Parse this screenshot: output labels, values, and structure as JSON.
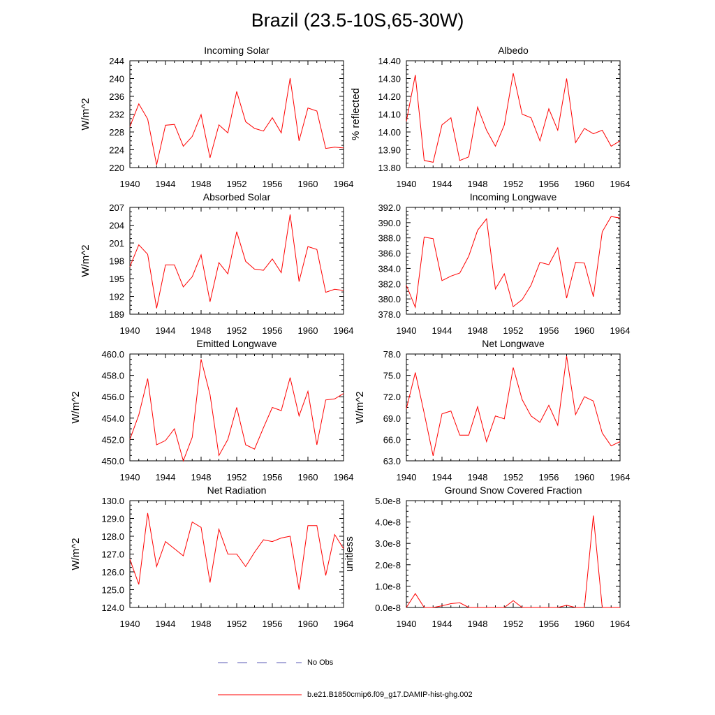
{
  "title": "Brazil (23.5-10S,65-30W)",
  "colors": {
    "model": "#ff0000",
    "obs": "#5a5ab4",
    "axis": "#000000"
  },
  "legend": [
    {
      "label": "No Obs",
      "color": "#5a5ab4",
      "style": "dashed"
    },
    {
      "label": "b.e21.B1850cmip6.f09_g17.DAMIP-hist-ghg.002",
      "color": "#ff0000",
      "style": "solid"
    }
  ],
  "chart_data": [
    {
      "type": "line",
      "title": "Incoming Solar",
      "ylabel": "W/m^2",
      "xlim": [
        1940,
        1964
      ],
      "ylim": [
        220,
        244
      ],
      "yticks": [
        "220",
        "224",
        "228",
        "232",
        "236",
        "240",
        "244"
      ],
      "xticks": [
        "1940",
        "1944",
        "1948",
        "1952",
        "1956",
        "1960",
        "1964"
      ],
      "x": [
        1940,
        1941,
        1942,
        1943,
        1944,
        1945,
        1946,
        1947,
        1948,
        1949,
        1950,
        1951,
        1952,
        1953,
        1954,
        1955,
        1956,
        1957,
        1958,
        1959,
        1960,
        1961,
        1962,
        1963,
        1964
      ],
      "series": [
        {
          "values": [
            229.2,
            234.3,
            230.9,
            220.6,
            229.5,
            229.7,
            224.8,
            227.0,
            231.9,
            222.2,
            229.6,
            227.8,
            237.1,
            230.3,
            228.8,
            228.2,
            231.2,
            227.8,
            240.1,
            226.0,
            233.4,
            232.7,
            224.3,
            224.6,
            224.4
          ]
        }
      ]
    },
    {
      "type": "line",
      "title": "Albedo",
      "ylabel": "% reflected",
      "xlim": [
        1940,
        1964
      ],
      "ylim": [
        13.8,
        14.4
      ],
      "yticks": [
        "13.80",
        "13.90",
        "14.00",
        "14.10",
        "14.20",
        "14.30",
        "14.40"
      ],
      "xticks": [
        "1940",
        "1944",
        "1948",
        "1952",
        "1956",
        "1960",
        "1964"
      ],
      "x": [
        1940,
        1941,
        1942,
        1943,
        1944,
        1945,
        1946,
        1947,
        1948,
        1949,
        1950,
        1951,
        1952,
        1953,
        1954,
        1955,
        1956,
        1957,
        1958,
        1959,
        1960,
        1961,
        1962,
        1963,
        1964
      ],
      "series": [
        {
          "values": [
            14.06,
            14.32,
            13.84,
            13.83,
            14.04,
            14.08,
            13.84,
            13.86,
            14.14,
            14.01,
            13.92,
            14.04,
            14.33,
            14.1,
            14.08,
            13.95,
            14.13,
            14.01,
            14.3,
            13.94,
            14.02,
            13.99,
            14.01,
            13.92,
            13.95
          ]
        }
      ]
    },
    {
      "type": "line",
      "title": "Absorbed Solar",
      "ylabel": "W/m^2",
      "xlim": [
        1940,
        1964
      ],
      "ylim": [
        189,
        207
      ],
      "yticks": [
        "189",
        "192",
        "195",
        "198",
        "201",
        "204",
        "207"
      ],
      "xticks": [
        "1940",
        "1944",
        "1948",
        "1952",
        "1956",
        "1960",
        "1964"
      ],
      "x": [
        1940,
        1941,
        1942,
        1943,
        1944,
        1945,
        1946,
        1947,
        1948,
        1949,
        1950,
        1951,
        1952,
        1953,
        1954,
        1955,
        1956,
        1957,
        1958,
        1959,
        1960,
        1961,
        1962,
        1963,
        1964
      ],
      "series": [
        {
          "values": [
            197.0,
            200.7,
            199.1,
            190.0,
            197.3,
            197.3,
            193.6,
            195.3,
            199.0,
            191.1,
            197.7,
            195.8,
            202.9,
            197.9,
            196.6,
            196.4,
            198.3,
            196.0,
            205.8,
            194.5,
            200.4,
            199.9,
            192.7,
            193.2,
            193.0
          ]
        }
      ]
    },
    {
      "type": "line",
      "title": "Incoming Longwave",
      "ylabel": "",
      "xlim": [
        1940,
        1964
      ],
      "ylim": [
        378,
        392
      ],
      "yticks": [
        "378.0",
        "380.0",
        "382.0",
        "384.0",
        "386.0",
        "388.0",
        "390.0",
        "392.0"
      ],
      "xticks": [
        "1940",
        "1944",
        "1948",
        "1952",
        "1956",
        "1960",
        "1964"
      ],
      "x": [
        1940,
        1941,
        1942,
        1943,
        1944,
        1945,
        1946,
        1947,
        1948,
        1949,
        1950,
        1951,
        1952,
        1953,
        1954,
        1955,
        1956,
        1957,
        1958,
        1959,
        1960,
        1961,
        1962,
        1963,
        1964
      ],
      "series": [
        {
          "values": [
            381.8,
            378.9,
            388.1,
            387.9,
            382.4,
            383.0,
            383.4,
            385.6,
            389.0,
            390.5,
            381.3,
            383.3,
            379.0,
            379.9,
            381.8,
            384.8,
            384.5,
            386.7,
            380.1,
            384.8,
            384.7,
            380.3,
            388.8,
            390.8,
            390.6
          ]
        }
      ]
    },
    {
      "type": "line",
      "title": "Emitted Longwave",
      "ylabel": "W/m^2",
      "xlim": [
        1940,
        1964
      ],
      "ylim": [
        450,
        460
      ],
      "yticks": [
        "450.0",
        "452.0",
        "454.0",
        "456.0",
        "458.0",
        "460.0"
      ],
      "xticks": [
        "1940",
        "1944",
        "1948",
        "1952",
        "1956",
        "1960",
        "1964"
      ],
      "x": [
        1940,
        1941,
        1942,
        1943,
        1944,
        1945,
        1946,
        1947,
        1948,
        1949,
        1950,
        1951,
        1952,
        1953,
        1954,
        1955,
        1956,
        1957,
        1958,
        1959,
        1960,
        1961,
        1962,
        1963,
        1964
      ],
      "series": [
        {
          "values": [
            452.0,
            454.3,
            457.7,
            451.5,
            451.9,
            453.0,
            450.0,
            452.2,
            459.5,
            456.2,
            450.5,
            452.0,
            455.0,
            451.5,
            451.1,
            453.1,
            455.0,
            454.7,
            457.8,
            454.2,
            456.5,
            451.5,
            455.7,
            455.8,
            456.3
          ]
        }
      ]
    },
    {
      "type": "line",
      "title": "Net Longwave",
      "ylabel": "W/m^2",
      "xlim": [
        1940,
        1964
      ],
      "ylim": [
        63,
        78
      ],
      "yticks": [
        "63.0",
        "66.0",
        "69.0",
        "72.0",
        "75.0",
        "78.0"
      ],
      "xticks": [
        "1940",
        "1944",
        "1948",
        "1952",
        "1956",
        "1960",
        "1964"
      ],
      "x": [
        1940,
        1941,
        1942,
        1943,
        1944,
        1945,
        1946,
        1947,
        1948,
        1949,
        1950,
        1951,
        1952,
        1953,
        1954,
        1955,
        1956,
        1957,
        1958,
        1959,
        1960,
        1961,
        1962,
        1963,
        1964
      ],
      "series": [
        {
          "values": [
            70.3,
            75.4,
            69.7,
            63.7,
            69.6,
            70.0,
            66.6,
            66.6,
            70.6,
            65.7,
            69.3,
            68.9,
            76.1,
            71.6,
            69.3,
            68.4,
            70.8,
            68.0,
            77.7,
            69.5,
            72.0,
            71.4,
            66.9,
            65.1,
            65.7
          ]
        }
      ]
    },
    {
      "type": "line",
      "title": "Net Radiation",
      "ylabel": "W/m^2",
      "xlim": [
        1940,
        1964
      ],
      "ylim": [
        124,
        130
      ],
      "yticks": [
        "124.0",
        "125.0",
        "126.0",
        "127.0",
        "128.0",
        "129.0",
        "130.0"
      ],
      "xticks": [
        "1940",
        "1944",
        "1948",
        "1952",
        "1956",
        "1960",
        "1964"
      ],
      "x": [
        1940,
        1941,
        1942,
        1943,
        1944,
        1945,
        1946,
        1947,
        1948,
        1949,
        1950,
        1951,
        1952,
        1953,
        1954,
        1955,
        1956,
        1957,
        1958,
        1959,
        1960,
        1961,
        1962,
        1963,
        1964
      ],
      "series": [
        {
          "values": [
            126.7,
            125.3,
            129.3,
            126.3,
            127.7,
            127.3,
            126.9,
            128.8,
            128.5,
            125.4,
            128.4,
            127.0,
            127.0,
            126.3,
            127.1,
            127.8,
            127.7,
            127.9,
            128.0,
            125.0,
            128.6,
            128.6,
            125.8,
            128.1,
            127.3
          ]
        }
      ]
    },
    {
      "type": "line",
      "title": "Ground Snow Covered Fraction",
      "ylabel": "unitless",
      "xlim": [
        1940,
        1964
      ],
      "ylim": [
        0,
        5e-08
      ],
      "yticks": [
        "0.0e-8",
        "1.0e-8",
        "2.0e-8",
        "3.0e-8",
        "4.0e-8",
        "5.0e-8"
      ],
      "xticks": [
        "1940",
        "1944",
        "1948",
        "1952",
        "1956",
        "1960",
        "1964"
      ],
      "x": [
        1940,
        1941,
        1942,
        1943,
        1944,
        1945,
        1946,
        1947,
        1948,
        1949,
        1950,
        1951,
        1952,
        1953,
        1954,
        1955,
        1956,
        1957,
        1958,
        1959,
        1960,
        1961,
        1962,
        1963,
        1964
      ],
      "series": [
        {
          "values": [
            0,
            6.5e-09,
            0,
            0,
            8e-10,
            1.8e-09,
            2.2e-09,
            0,
            0,
            0,
            0,
            0,
            3.2e-09,
            0,
            0,
            0,
            0,
            0,
            1e-09,
            0,
            0,
            4.3e-08,
            0,
            0,
            0
          ]
        }
      ]
    }
  ]
}
